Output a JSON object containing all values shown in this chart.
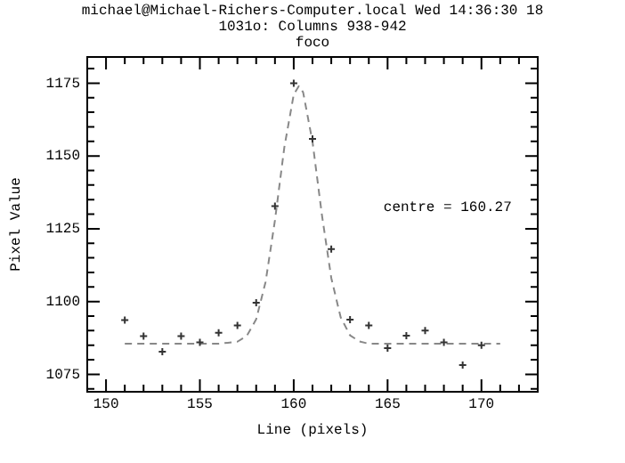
{
  "chart_data": {
    "type": "scatter",
    "title": "michael@Michael-Richers-Computer.local Wed 14:36:30 18",
    "subtitle": "1031o: Columns 938-942",
    "xlabel": "Line (pixels)",
    "ylabel": "Pixel Value",
    "annotations": [
      "foco",
      "centre = 160.27"
    ],
    "xlim": [
      149,
      173
    ],
    "xticks": [
      150,
      155,
      160,
      165,
      170
    ],
    "ylim": [
      1069,
      1184
    ],
    "yticks": [
      1075,
      1100,
      1125,
      1150,
      1175
    ],
    "grid": false,
    "legend": false,
    "marker": "cross",
    "series": [
      {
        "color": "#333333",
        "x": [
          151,
          152,
          153,
          154,
          155,
          156,
          157,
          158,
          159,
          160,
          161,
          162,
          163,
          164,
          165,
          166,
          167,
          168,
          169,
          170
        ],
        "values": [
          1093.6,
          1088.1,
          1082.8,
          1088.1,
          1086,
          1089.3,
          1091.8,
          1099.6,
          1132.8,
          1175,
          1155.9,
          1118,
          1093.8,
          1091.8,
          1084,
          1088.3,
          1090,
          1086,
          1078.2,
          1085
        ]
      },
      {
        "type": "line",
        "color": "#888888",
        "line_style": "dashed",
        "marker": "none",
        "x": [
          151,
          156,
          157,
          157.5,
          158,
          158.5,
          159,
          159.5,
          160,
          160.27,
          160.5,
          161,
          161.5,
          162,
          162.5,
          163,
          163.5,
          164,
          171
        ],
        "values": [
          1085.5,
          1085.5,
          1086.2,
          1088.2,
          1093.9,
          1106.7,
          1127.9,
          1153,
          1171.1,
          1174,
          1171.9,
          1154.9,
          1129.8,
          1108.1,
          1094.6,
          1088.4,
          1086.3,
          1085.5,
          1085.5
        ]
      }
    ]
  }
}
